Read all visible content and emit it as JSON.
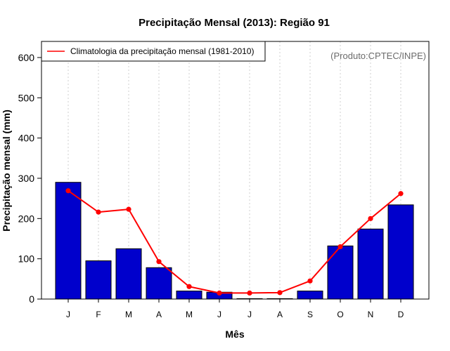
{
  "chart_data": {
    "type": "bar",
    "title": "Precipitação Mensal (2013): Região 91",
    "xlabel": "Mês",
    "ylabel": "Precipitação mensal (mm)",
    "ylim": [
      0,
      640
    ],
    "yticks": [
      0,
      100,
      200,
      300,
      400,
      500,
      600
    ],
    "grid": "vertical dotted",
    "categories": [
      "J",
      "F",
      "M",
      "A",
      "M",
      "J",
      "J",
      "A",
      "S",
      "O",
      "N",
      "D"
    ],
    "series": [
      {
        "name": "Precipitação mensal 2013",
        "kind": "bar",
        "color": "#0000CC",
        "values": [
          290,
          95,
          125,
          78,
          20,
          17,
          0,
          1,
          20,
          132,
          174,
          234
        ]
      },
      {
        "name": "Climatologia da precipitação mensal (1981-2010)",
        "kind": "line",
        "color": "#FF0000",
        "values": [
          269,
          216,
          223,
          93,
          31,
          15,
          15,
          16,
          45,
          130,
          200,
          262
        ]
      }
    ],
    "legend": {
      "label": "Climatologia da precipitação mensal (1981-2010)",
      "position": "top-left"
    },
    "annotation": "(Produto:CPTEC/INPE)"
  }
}
